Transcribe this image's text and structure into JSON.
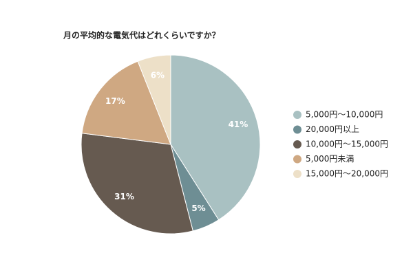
{
  "chart_data": {
    "type": "pie",
    "title": "月の平均的な電気代はどれくらいですか？",
    "categories": [
      "5,000円～10,000円",
      "20,000円以上",
      "10,000円～15,000円",
      "5,000円未満",
      "15,000円～20,000円"
    ],
    "values": [
      41,
      5,
      31,
      17,
      6
    ],
    "value_labels": [
      "41%",
      "5%",
      "31%",
      "17%",
      "6%"
    ],
    "colors": [
      "#a9c1c2",
      "#6e8e94",
      "#665a50",
      "#cfa882",
      "#ede0c8"
    ],
    "legend": "right"
  }
}
